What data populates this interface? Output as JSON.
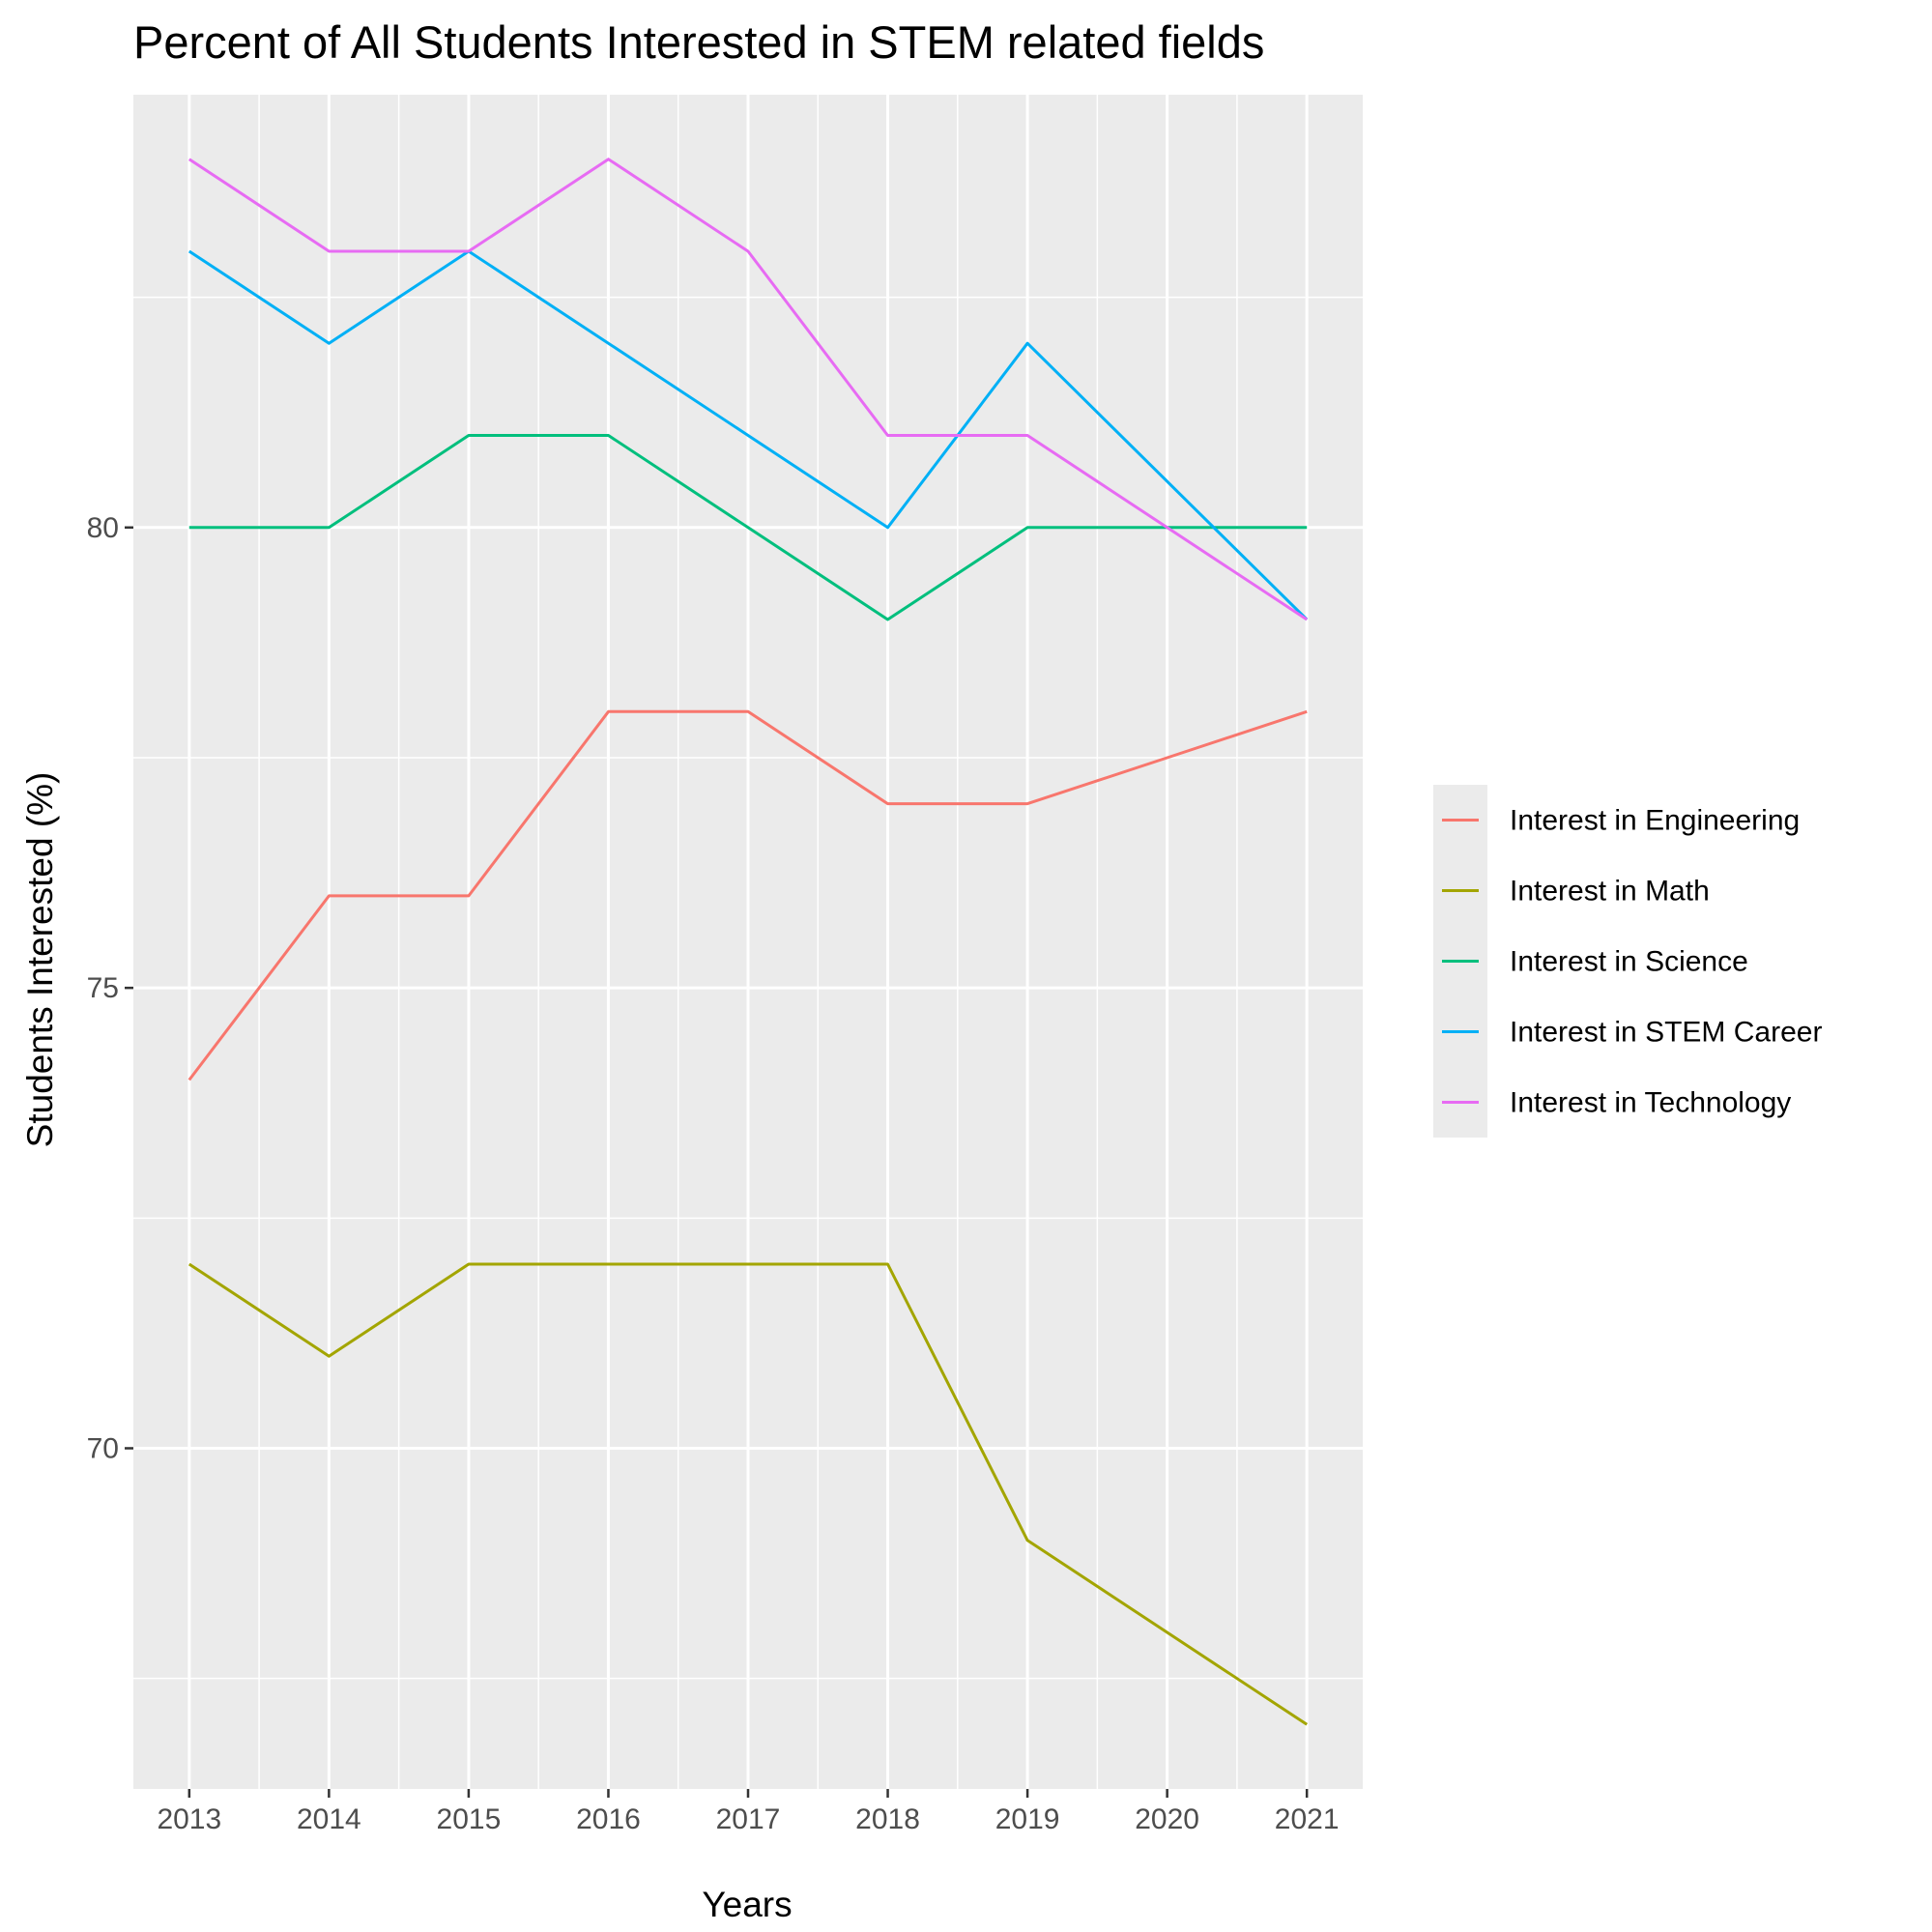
{
  "chart_data": {
    "type": "line",
    "title": "Percent of All Students Interested in STEM related fields",
    "xlabel": "Years",
    "ylabel": "Students Interested (%)",
    "x": [
      2013,
      2014,
      2015,
      2016,
      2017,
      2018,
      2019,
      2020,
      2021
    ],
    "x_ticks": [
      "2013",
      "2014",
      "2015",
      "2016",
      "2017",
      "2018",
      "2019",
      "2020",
      "2021"
    ],
    "y_ticks": [
      "70",
      "75",
      "80"
    ],
    "xlim": [
      2012.6,
      2021.4
    ],
    "ylim": [
      66.3,
      84.7
    ],
    "grid": true,
    "legend_position": "right",
    "series": [
      {
        "name": "Interest in Engineering",
        "color": "#F8766D",
        "values": [
          74,
          76,
          76,
          78,
          78,
          77,
          77,
          77.5,
          78
        ]
      },
      {
        "name": "Interest in Math",
        "color": "#A3A500",
        "values": [
          72,
          71,
          72,
          72,
          72,
          72,
          69,
          68,
          67
        ]
      },
      {
        "name": "Interest in Science",
        "color": "#00BF7D",
        "values": [
          80,
          80,
          81,
          81,
          80,
          79,
          80,
          80,
          80
        ]
      },
      {
        "name": "Interest in STEM Career",
        "color": "#00B0F6",
        "values": [
          83,
          82,
          83,
          82,
          81,
          80,
          82,
          80.5,
          79
        ]
      },
      {
        "name": "Interest in Technology",
        "color": "#E76BF3",
        "values": [
          84,
          83,
          83,
          84,
          83,
          81,
          81,
          80,
          79
        ]
      }
    ]
  }
}
